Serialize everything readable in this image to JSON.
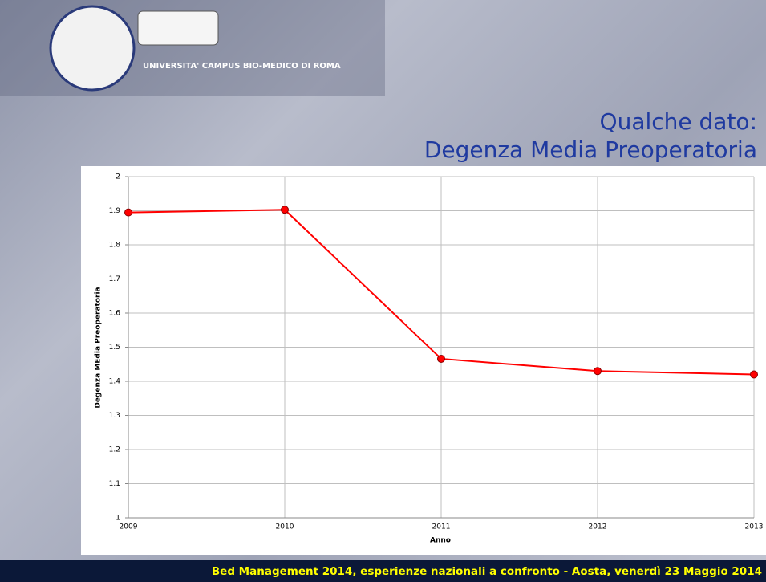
{
  "slide": {
    "university": "UNIVERSITA' CAMPUS BIO-MEDICO DI ROMA",
    "footer": "Bed Management 2014, esperienze nazionali a confronto  - Aosta, venerdì 23 Maggio  2014"
  },
  "chart_data": {
    "type": "line",
    "title": "Qualche dato:",
    "subtitle": "Degenza Media Preoperatoria",
    "x_label": "Anno",
    "y_label": "Degenza MEdia Preoperatoria",
    "categories": [
      "2009",
      "2010",
      "2011",
      "2012",
      "2013"
    ],
    "series": [
      {
        "name": "Degenza Media Preoperatoria",
        "color": "#ff0000",
        "values": [
          1.895,
          1.903,
          1.466,
          1.43,
          1.42
        ]
      }
    ],
    "ylim": [
      1,
      2
    ],
    "yticks": [
      1,
      1.1,
      1.2,
      1.3,
      1.4,
      1.5,
      1.6,
      1.7,
      1.8,
      1.9,
      2
    ],
    "grid": true
  }
}
